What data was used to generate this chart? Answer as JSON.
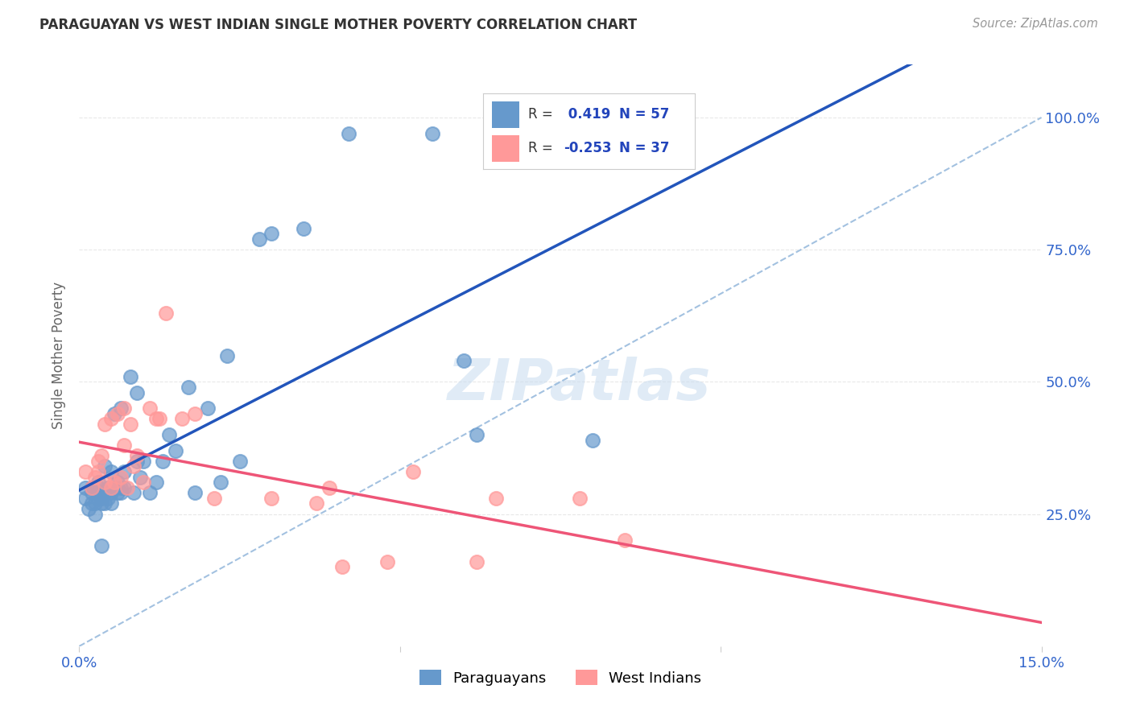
{
  "title": "PARAGUAYAN VS WEST INDIAN SINGLE MOTHER POVERTY CORRELATION CHART",
  "source": "Source: ZipAtlas.com",
  "ylabel": "Single Mother Poverty",
  "ytick_labels": [
    "25.0%",
    "50.0%",
    "75.0%",
    "100.0%"
  ],
  "ytick_positions": [
    25.0,
    50.0,
    75.0,
    100.0
  ],
  "xmin": 0.0,
  "xmax": 15.0,
  "ymin": 0.0,
  "ymax": 110.0,
  "paraguayan_color": "#6699CC",
  "west_indian_color": "#FF9999",
  "blue_line_color": "#2255BB",
  "pink_line_color": "#EE5577",
  "dashed_line_color": "#99BBDD",
  "legend_R_color": "#2244BB",
  "R_paraguayan": 0.419,
  "N_paraguayan": 57,
  "R_west_indian": -0.253,
  "N_west_indian": 37,
  "paraguayan_x": [
    0.1,
    0.1,
    0.15,
    0.2,
    0.2,
    0.2,
    0.25,
    0.25,
    0.3,
    0.3,
    0.3,
    0.3,
    0.35,
    0.35,
    0.35,
    0.4,
    0.4,
    0.4,
    0.45,
    0.45,
    0.5,
    0.5,
    0.5,
    0.55,
    0.55,
    0.6,
    0.6,
    0.65,
    0.65,
    0.65,
    0.7,
    0.7,
    0.8,
    0.85,
    0.9,
    0.9,
    0.95,
    1.0,
    1.1,
    1.2,
    1.3,
    1.4,
    1.5,
    1.7,
    1.8,
    2.0,
    2.2,
    2.3,
    2.5,
    2.8,
    3.0,
    3.5,
    4.2,
    5.5,
    6.0,
    6.2,
    8.0
  ],
  "paraguayan_y": [
    28.0,
    30.0,
    26.0,
    27.0,
    29.0,
    30.0,
    25.0,
    27.0,
    28.0,
    29.0,
    30.0,
    31.0,
    19.0,
    27.0,
    28.0,
    27.0,
    29.0,
    34.0,
    28.0,
    30.0,
    27.0,
    29.0,
    33.0,
    30.0,
    44.0,
    29.0,
    31.0,
    30.0,
    45.0,
    29.0,
    33.0,
    30.0,
    51.0,
    29.0,
    35.0,
    48.0,
    32.0,
    35.0,
    29.0,
    31.0,
    35.0,
    40.0,
    37.0,
    49.0,
    29.0,
    45.0,
    31.0,
    55.0,
    35.0,
    77.0,
    78.0,
    79.0,
    97.0,
    97.0,
    54.0,
    40.0,
    39.0
  ],
  "west_indian_x": [
    0.1,
    0.2,
    0.25,
    0.3,
    0.3,
    0.35,
    0.4,
    0.4,
    0.5,
    0.5,
    0.55,
    0.6,
    0.65,
    0.7,
    0.7,
    0.75,
    0.8,
    0.85,
    0.9,
    1.0,
    1.1,
    1.2,
    1.25,
    1.35,
    1.6,
    1.8,
    2.1,
    3.0,
    3.7,
    3.9,
    4.1,
    4.8,
    5.2,
    6.2,
    6.5,
    7.8,
    8.5
  ],
  "west_indian_y": [
    33.0,
    30.0,
    32.0,
    33.0,
    35.0,
    36.0,
    31.0,
    42.0,
    30.0,
    43.0,
    31.0,
    44.0,
    32.0,
    38.0,
    45.0,
    30.0,
    42.0,
    34.0,
    36.0,
    31.0,
    45.0,
    43.0,
    43.0,
    63.0,
    43.0,
    44.0,
    28.0,
    28.0,
    27.0,
    30.0,
    15.0,
    16.0,
    33.0,
    16.0,
    28.0,
    28.0,
    20.0
  ],
  "background_color": "#FFFFFF",
  "grid_color": "#E8E8E8"
}
